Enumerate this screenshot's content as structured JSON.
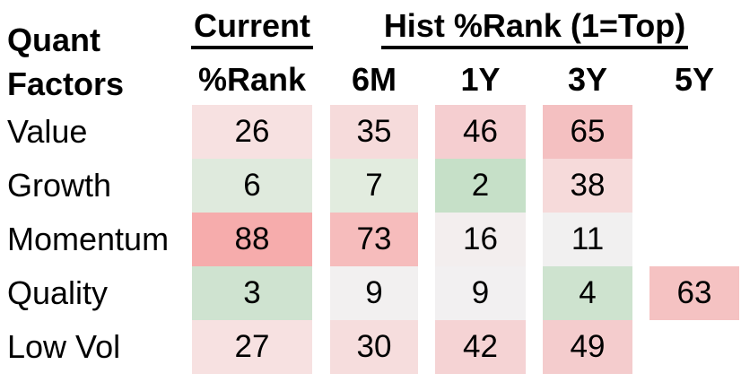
{
  "title_block": {
    "line1": "Quant",
    "line2": "Factors"
  },
  "columns": {
    "current_group_label": "Current",
    "current_col_label": "%Rank",
    "hist_group_label": "Hist %Rank (1=Top)",
    "hist_col_labels": [
      "6M",
      "1Y",
      "3Y",
      "5Y"
    ]
  },
  "colors": {
    "strong_red": "#f6acac",
    "strong_green": "#c6e0c8",
    "neutral": "#f2f0f0",
    "text": "#000000",
    "background": "#ffffff"
  },
  "rows": [
    {
      "label": "Value",
      "cells": [
        {
          "value": "26",
          "bg": "#f7e1e1"
        },
        {
          "value": "35",
          "bg": "#f6dbdb"
        },
        {
          "value": "46",
          "bg": "#f5ced0"
        },
        {
          "value": "65",
          "bg": "#f4c0c1"
        },
        {
          "value": "",
          "bg": ""
        }
      ]
    },
    {
      "label": "Growth",
      "cells": [
        {
          "value": "6",
          "bg": "#dfeadd"
        },
        {
          "value": "7",
          "bg": "#e2ecdf"
        },
        {
          "value": "2",
          "bg": "#c6e0c8"
        },
        {
          "value": "38",
          "bg": "#f6dada"
        },
        {
          "value": "",
          "bg": ""
        }
      ]
    },
    {
      "label": "Momentum",
      "cells": [
        {
          "value": "88",
          "bg": "#f6acac"
        },
        {
          "value": "73",
          "bg": "#f6bcbc"
        },
        {
          "value": "16",
          "bg": "#f3eeee"
        },
        {
          "value": "11",
          "bg": "#f1f0f0"
        },
        {
          "value": "",
          "bg": ""
        }
      ]
    },
    {
      "label": "Quality",
      "cells": [
        {
          "value": "3",
          "bg": "#cfe3d0"
        },
        {
          "value": "9",
          "bg": "#f2f0f0"
        },
        {
          "value": "9",
          "bg": "#f2f0f1"
        },
        {
          "value": "4",
          "bg": "#cee3cf"
        },
        {
          "value": "63",
          "bg": "#f5c2c2"
        }
      ]
    },
    {
      "label": "Low Vol",
      "cells": [
        {
          "value": "27",
          "bg": "#f7e1e1"
        },
        {
          "value": "30",
          "bg": "#f6dddd"
        },
        {
          "value": "42",
          "bg": "#f5d3d4"
        },
        {
          "value": "49",
          "bg": "#f4cccd"
        },
        {
          "value": "",
          "bg": ""
        }
      ]
    }
  ],
  "chart_data": {
    "type": "heatmap",
    "title": "Quant Factors %Rank (1=Top)",
    "row_categories": [
      "Value",
      "Growth",
      "Momentum",
      "Quality",
      "Low Vol"
    ],
    "column_categories": [
      "Current %Rank",
      "6M",
      "1Y",
      "3Y",
      "5Y"
    ],
    "values": [
      [
        26,
        35,
        46,
        65,
        null
      ],
      [
        6,
        7,
        2,
        38,
        null
      ],
      [
        88,
        73,
        16,
        11,
        null
      ],
      [
        3,
        9,
        9,
        4,
        63
      ],
      [
        27,
        30,
        42,
        49,
        null
      ]
    ],
    "value_range": [
      1,
      100
    ],
    "color_scale": "green (low rank = top) through near-white to red (high rank)",
    "legend_position": "none",
    "grid": false
  }
}
